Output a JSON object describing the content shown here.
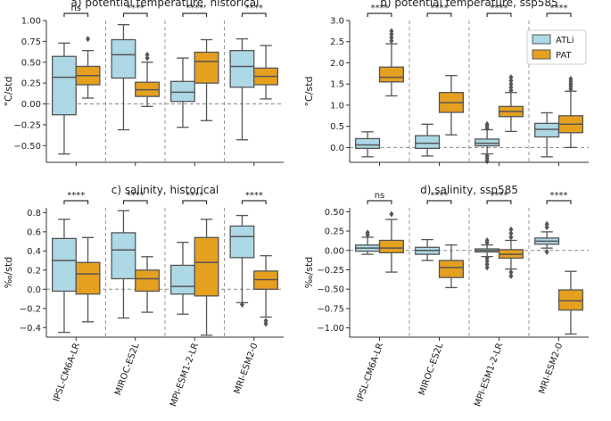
{
  "colors": {
    "atli": "#add8e6",
    "pat": "#e6a020",
    "line": "#555555",
    "zero": "#888888"
  },
  "legend": {
    "atli": "ATLi",
    "pat": "PAT"
  },
  "xticklabels": [
    "IPSL-CM6A-LR",
    "MIROC-ES2L",
    "MPI-ESM1-2-LR",
    "MRI-ESM2-0"
  ],
  "chart_data": [
    {
      "type": "box",
      "title": "a) potential temperature, historical",
      "ylabel": "°C/std",
      "ylim": [
        -0.7,
        1.0
      ],
      "yticks": [
        -0.5,
        -0.25,
        0.0,
        0.25,
        0.5,
        0.75,
        1.0
      ],
      "yticklabels": [
        "−0.50",
        "−0.25",
        "0.00",
        "0.25",
        "0.50",
        "0.75",
        "1.00"
      ],
      "groups": [
        {
          "model": "IPSL-CM6A-LR",
          "sig": "ns",
          "atli": {
            "wl": -0.6,
            "q1": -0.13,
            "med": 0.32,
            "q3": 0.57,
            "wh": 0.73,
            "fl": []
          },
          "pat": {
            "wl": 0.07,
            "q1": 0.23,
            "med": 0.34,
            "q3": 0.45,
            "wh": 0.64,
            "fl": [
              0.78
            ]
          }
        },
        {
          "model": "MIROC-ES2L",
          "sig": "****",
          "atli": {
            "wl": -0.31,
            "q1": 0.31,
            "med": 0.59,
            "q3": 0.77,
            "wh": 0.95,
            "fl": []
          },
          "pat": {
            "wl": -0.03,
            "q1": 0.09,
            "med": 0.17,
            "q3": 0.26,
            "wh": 0.5,
            "fl": [
              0.55,
              0.59
            ]
          }
        },
        {
          "model": "MPI-ESM1-2-LR",
          "sig": "****",
          "atli": {
            "wl": -0.28,
            "q1": 0.03,
            "med": 0.14,
            "q3": 0.27,
            "wh": 0.55,
            "fl": []
          },
          "pat": {
            "wl": -0.2,
            "q1": 0.25,
            "med": 0.51,
            "q3": 0.62,
            "wh": 0.77,
            "fl": []
          }
        },
        {
          "model": "MRI-ESM2-0",
          "sig": "****",
          "atli": {
            "wl": -0.43,
            "q1": 0.2,
            "med": 0.45,
            "q3": 0.64,
            "wh": 0.78,
            "fl": []
          },
          "pat": {
            "wl": 0.06,
            "q1": 0.23,
            "med": 0.33,
            "q3": 0.43,
            "wh": 0.7,
            "fl": []
          }
        }
      ]
    },
    {
      "type": "box",
      "title": "b) potential temperature, ssp585",
      "ylabel": "°C/std",
      "ylim": [
        -0.35,
        3.0
      ],
      "yticks": [
        0.0,
        0.5,
        1.0,
        1.5,
        2.0,
        2.5,
        3.0
      ],
      "yticklabels": [
        "0.0",
        "0.5",
        "1.0",
        "1.5",
        "2.0",
        "2.5",
        "3.0"
      ],
      "groups": [
        {
          "model": "IPSL-CM6A-LR",
          "sig": "****",
          "atli": {
            "wl": -0.22,
            "q1": -0.02,
            "med": 0.06,
            "q3": 0.21,
            "wh": 0.37,
            "fl": []
          },
          "pat": {
            "wl": 1.22,
            "q1": 1.55,
            "med": 1.66,
            "q3": 1.9,
            "wh": 2.45,
            "fl": [
              2.52,
              2.6,
              2.68,
              2.75
            ]
          }
        },
        {
          "model": "MIROC-ES2L",
          "sig": "****",
          "atli": {
            "wl": -0.2,
            "q1": -0.02,
            "med": 0.1,
            "q3": 0.28,
            "wh": 0.55,
            "fl": []
          },
          "pat": {
            "wl": 0.3,
            "q1": 0.83,
            "med": 1.06,
            "q3": 1.3,
            "wh": 1.7,
            "fl": []
          }
        },
        {
          "model": "MPI-ESM1-2-LR",
          "sig": "****",
          "atli": {
            "wl": -0.15,
            "q1": 0.04,
            "med": 0.1,
            "q3": 0.2,
            "wh": 0.42,
            "fl": [
              0.45,
              0.5,
              0.55,
              -0.2,
              -0.26,
              -0.32
            ]
          },
          "pat": {
            "wl": 0.38,
            "q1": 0.73,
            "med": 0.85,
            "q3": 0.97,
            "wh": 1.3,
            "fl": [
              1.35,
              1.42,
              1.5,
              1.58,
              1.66
            ]
          }
        },
        {
          "model": "MRI-ESM2-0",
          "sig": "****",
          "atli": {
            "wl": -0.22,
            "q1": 0.25,
            "med": 0.43,
            "q3": 0.57,
            "wh": 0.82,
            "fl": []
          },
          "pat": {
            "wl": 0.0,
            "q1": 0.35,
            "med": 0.55,
            "q3": 0.75,
            "wh": 1.33,
            "fl": [
              1.38,
              1.44,
              1.5,
              1.56,
              1.62
            ]
          }
        }
      ]
    },
    {
      "type": "box",
      "title": "c) salinity, historical",
      "ylabel": "‰/std",
      "ylim": [
        -0.5,
        0.85
      ],
      "yticks": [
        -0.4,
        -0.2,
        0.0,
        0.2,
        0.4,
        0.6,
        0.8
      ],
      "yticklabels": [
        "−0.4",
        "−0.2",
        "0.0",
        "0.2",
        "0.4",
        "0.6",
        "0.8"
      ],
      "groups": [
        {
          "model": "IPSL-CM6A-LR",
          "sig": "****",
          "atli": {
            "wl": -0.45,
            "q1": -0.02,
            "med": 0.3,
            "q3": 0.53,
            "wh": 0.73,
            "fl": []
          },
          "pat": {
            "wl": -0.34,
            "q1": -0.05,
            "med": 0.16,
            "q3": 0.28,
            "wh": 0.54,
            "fl": []
          }
        },
        {
          "model": "MIROC-ES2L",
          "sig": "****",
          "atli": {
            "wl": -0.3,
            "q1": 0.11,
            "med": 0.41,
            "q3": 0.59,
            "wh": 0.82,
            "fl": []
          },
          "pat": {
            "wl": -0.24,
            "q1": -0.02,
            "med": 0.11,
            "q3": 0.2,
            "wh": 0.34,
            "fl": []
          }
        },
        {
          "model": "MPI-ESM1-2-LR",
          "sig": "****",
          "atli": {
            "wl": -0.26,
            "q1": -0.05,
            "med": 0.03,
            "q3": 0.25,
            "wh": 0.49,
            "fl": []
          },
          "pat": {
            "wl": -0.48,
            "q1": -0.07,
            "med": 0.28,
            "q3": 0.54,
            "wh": 0.73,
            "fl": []
          }
        },
        {
          "model": "MRI-ESM2-0",
          "sig": "****",
          "atli": {
            "wl": -0.14,
            "q1": 0.33,
            "med": 0.55,
            "q3": 0.66,
            "wh": 0.77,
            "fl": [
              -0.16
            ]
          },
          "pat": {
            "wl": -0.29,
            "q1": 0.0,
            "med": 0.1,
            "q3": 0.19,
            "wh": 0.35,
            "fl": [
              -0.33,
              -0.36
            ]
          }
        }
      ]
    },
    {
      "type": "box",
      "title": "d) salinity, ssp585",
      "ylabel": "‰/std",
      "ylim": [
        -1.12,
        0.55
      ],
      "yticks": [
        -1.0,
        -0.75,
        -0.5,
        -0.25,
        0.0,
        0.25,
        0.5
      ],
      "yticklabels": [
        "−1.00",
        "−0.75",
        "−0.50",
        "−0.25",
        "0.00",
        "0.25",
        "0.50"
      ],
      "groups": [
        {
          "model": "IPSL-CM6A-LR",
          "sig": "ns",
          "atli": {
            "wl": -0.05,
            "q1": -0.01,
            "med": 0.03,
            "q3": 0.07,
            "wh": 0.17,
            "fl": [
              0.2,
              0.23
            ]
          },
          "pat": {
            "wl": -0.28,
            "q1": -0.03,
            "med": 0.03,
            "q3": 0.13,
            "wh": 0.4,
            "fl": [
              0.47
            ]
          }
        },
        {
          "model": "MIROC-ES2L",
          "sig": "****",
          "atli": {
            "wl": -0.13,
            "q1": -0.05,
            "med": 0.0,
            "q3": 0.04,
            "wh": 0.14,
            "fl": []
          },
          "pat": {
            "wl": -0.48,
            "q1": -0.35,
            "med": -0.22,
            "q3": -0.13,
            "wh": 0.07,
            "fl": []
          }
        },
        {
          "model": "MPI-ESM1-2-LR",
          "sig": "****",
          "atli": {
            "wl": -0.08,
            "q1": -0.02,
            "med": 0.0,
            "q3": 0.02,
            "wh": 0.07,
            "fl": [
              0.1,
              0.13,
              -0.1,
              -0.14,
              -0.18,
              -0.22
            ]
          },
          "pat": {
            "wl": -0.24,
            "q1": -0.1,
            "med": -0.05,
            "q3": 0.01,
            "wh": 0.13,
            "fl": [
              0.17,
              0.22,
              0.27,
              -0.28,
              -0.33
            ]
          }
        },
        {
          "model": "MRI-ESM2-0",
          "sig": "****",
          "atli": {
            "wl": 0.03,
            "q1": 0.08,
            "med": 0.12,
            "q3": 0.16,
            "wh": 0.24,
            "fl": [
              0.3,
              0.34,
              -0.02
            ]
          },
          "pat": {
            "wl": -1.08,
            "q1": -0.77,
            "med": -0.65,
            "q3": -0.51,
            "wh": -0.27,
            "fl": []
          }
        }
      ]
    }
  ]
}
